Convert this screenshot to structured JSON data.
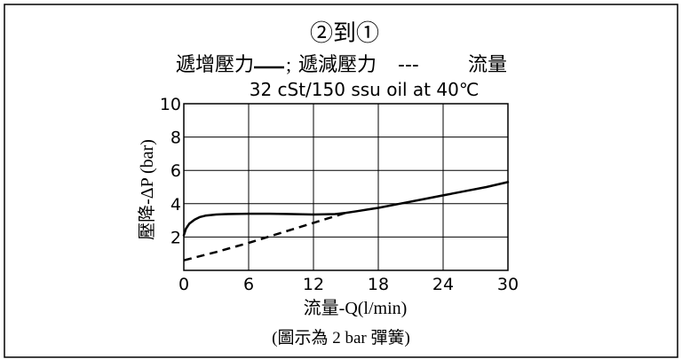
{
  "chart_data": {
    "type": "line",
    "title": "②到①",
    "legend": {
      "increasing_label": "遞增壓力",
      "separator": ";",
      "decreasing_label": "遞減壓力",
      "flow_marker": "---",
      "flow_label": "流量"
    },
    "condition": "32 cSt/150 ssu oil at 40℃",
    "xlabel": "流量-Q(l/min)",
    "ylabel": "壓降-ΔP (bar)",
    "note": "(圖示為 2 bar 彈簧)",
    "xlim": [
      0,
      30
    ],
    "ylim": [
      0,
      10
    ],
    "x_ticks": [
      "0",
      "6",
      "12",
      "18",
      "24",
      "30"
    ],
    "y_ticks": [
      "2",
      "4",
      "6",
      "8",
      "10"
    ],
    "grid": true,
    "series": [
      {
        "style": "solid",
        "color": "#000000",
        "x": [
          0,
          0.2,
          0.5,
          1,
          1.5,
          2,
          3,
          4,
          6,
          8,
          10,
          12,
          14,
          15,
          16,
          17,
          18,
          20,
          22,
          24,
          26,
          28,
          30
        ],
        "y": [
          2.1,
          2.5,
          2.8,
          3.05,
          3.2,
          3.28,
          3.35,
          3.38,
          3.4,
          3.4,
          3.38,
          3.35,
          3.38,
          3.45,
          3.55,
          3.65,
          3.75,
          4.0,
          4.25,
          4.5,
          4.75,
          5.0,
          5.3
        ]
      },
      {
        "style": "dashed",
        "color": "#000000",
        "x": [
          0,
          3,
          6,
          9,
          12,
          15
        ],
        "y": [
          0.6,
          1.1,
          1.65,
          2.25,
          2.85,
          3.45
        ]
      }
    ]
  }
}
